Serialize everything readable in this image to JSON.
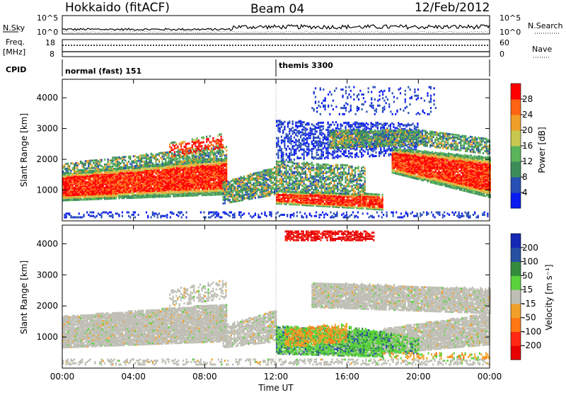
{
  "header": {
    "station": "Hokkaido (fitACF)",
    "beam": "Beam 04",
    "date": "12/Feb/2012"
  },
  "noise_panel": {
    "left_label": "N.Sky",
    "right_label": "N.Search",
    "left_ticks": [
      "10^5",
      "10^0"
    ],
    "right_ticks": [
      "10^5",
      "10^0"
    ]
  },
  "freq_panel": {
    "left_label_1": "Freq.",
    "left_label_2": "[MHz]",
    "right_label": "Nave",
    "left_ticks": [
      "18",
      "8"
    ],
    "right_ticks": [
      "60",
      "0"
    ]
  },
  "cpid": {
    "label": "CPID",
    "segments": [
      {
        "text": "normal (fast) 151",
        "start_hour": 0
      },
      {
        "text": "themis 3300",
        "start_hour": 12
      }
    ]
  },
  "chart_data": [
    {
      "type": "heatmap",
      "ylabel": "Slant Range [km]",
      "yticks": [
        "1000",
        "2000",
        "3000",
        "4000"
      ],
      "colorbar_label": "Power [dB]",
      "colorbar_ticks": [
        "4",
        "8",
        "12",
        "16",
        "20",
        "24",
        "28"
      ],
      "colors": [
        "#0a1cf0",
        "#2850b4",
        "#3c8c5a",
        "#5ab45a",
        "#c8c850",
        "#f0a028",
        "#ff6414",
        "#ff0000"
      ]
    },
    {
      "type": "heatmap",
      "ylabel": "Slant Range [km]",
      "yticks": [
        "1000",
        "2000",
        "3000",
        "4000"
      ],
      "colorbar_label": "Velocity [m s⁻¹]",
      "colorbar_ticks": [
        "200",
        "100",
        "50",
        "15",
        "-15",
        "-50",
        "-100",
        "-200"
      ],
      "colors": [
        "#1428b4",
        "#2850a0",
        "#328c3c",
        "#5ad23c",
        "#bebeb4",
        "#f0a028",
        "#ff7814",
        "#ff2814",
        "#e60000"
      ]
    }
  ],
  "xaxis": {
    "label": "Time UT",
    "ticks": [
      "00:00",
      "04:00",
      "08:00",
      "12:00",
      "16:00",
      "20:00",
      "00:00"
    ]
  }
}
